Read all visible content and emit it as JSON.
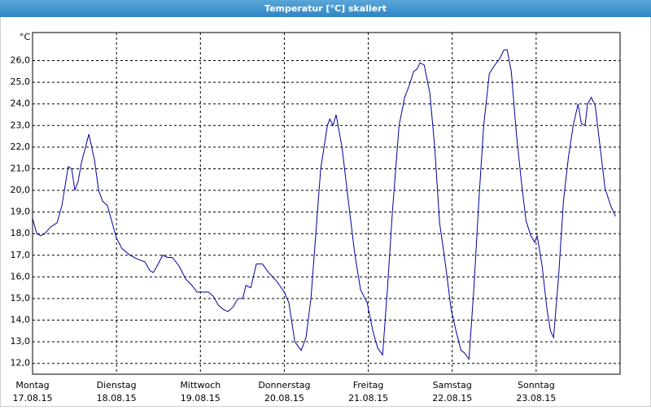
{
  "chart_data": {
    "type": "line",
    "title": "Temperatur [°C] skaliert",
    "y_unit": "°C",
    "x": [
      0,
      1.2,
      2.3,
      3.5,
      5.1,
      7.0,
      8.4,
      10.2,
      11.2,
      12.1,
      13.0,
      14.0,
      16.1,
      17.7,
      18.9,
      20.0,
      21.4,
      22.6,
      24.0,
      25.6,
      27.9,
      30.3,
      32.1,
      33.5,
      34.5,
      35.6,
      37.2,
      38.6,
      40.0,
      41.9,
      43.8,
      45.6,
      47.0,
      48.0,
      50.3,
      51.7,
      53.1,
      54.5,
      55.9,
      57.3,
      58.7,
      60.1,
      61.0,
      62.4,
      64.0,
      65.7,
      67.5,
      69.8,
      72.0,
      73.3,
      75.0,
      76.8,
      78.2,
      79.6,
      81.0,
      82.4,
      84.3,
      85.0,
      85.9,
      86.8,
      88.5,
      90.3,
      92.2,
      93.8,
      95.7,
      97.3,
      98.7,
      100.1,
      101.5,
      102.9,
      104.8,
      106.4,
      107.6,
      109.0,
      109.9,
      110.8,
      112.0,
      113.6,
      115.0,
      116.4,
      117.8,
      119.7,
      121.1,
      122.5,
      123.4,
      124.8,
      126.2,
      127.6,
      129.0,
      130.6,
      132.2,
      133.6,
      134.8,
      135.7,
      136.9,
      138.3,
      139.7,
      141.1,
      142.5,
      143.6,
      144.3,
      145.7,
      147.1,
      148.1,
      149.0,
      150.4,
      151.8,
      153.2,
      154.6,
      156.0,
      156.9,
      158.0,
      158.7,
      159.8,
      160.9,
      162.3,
      163.7,
      165.3,
      166.7
    ],
    "series": [
      {
        "name": "Temperatur",
        "color": "#0000a0",
        "values": [
          18.7,
          18.0,
          17.9,
          18.0,
          18.3,
          18.5,
          19.3,
          21.1,
          21.0,
          20.0,
          20.4,
          21.3,
          22.6,
          21.4,
          20.0,
          19.5,
          19.3,
          18.6,
          17.8,
          17.3,
          17.0,
          16.8,
          16.7,
          16.3,
          16.2,
          16.5,
          17.0,
          16.9,
          16.9,
          16.5,
          15.9,
          15.6,
          15.3,
          15.3,
          15.3,
          15.1,
          14.7,
          14.5,
          14.4,
          14.6,
          15.0,
          15.0,
          15.6,
          15.5,
          16.6,
          16.6,
          16.2,
          15.8,
          15.3,
          14.8,
          13.0,
          12.6,
          13.2,
          15.0,
          18.0,
          21.0,
          23.0,
          23.3,
          23.0,
          23.5,
          22.0,
          19.5,
          17.0,
          15.4,
          14.8,
          13.5,
          12.7,
          12.4,
          15.5,
          19.0,
          23.0,
          24.3,
          24.8,
          25.5,
          25.6,
          25.9,
          25.8,
          24.5,
          22.0,
          18.5,
          16.9,
          14.5,
          13.5,
          12.6,
          12.5,
          12.2,
          15.5,
          19.5,
          23.0,
          25.4,
          25.8,
          26.1,
          26.5,
          26.5,
          25.5,
          22.7,
          20.5,
          18.6,
          17.9,
          17.6,
          17.9,
          16.5,
          14.5,
          13.5,
          13.2,
          16.0,
          19.5,
          21.5,
          23.0,
          24.0,
          23.1,
          23.0,
          24.0,
          24.3,
          23.9,
          22.0,
          20.1,
          19.3,
          18.8
        ]
      }
    ],
    "xlim": [
      0,
      168
    ],
    "xticks": [
      {
        "value": 0,
        "label": "Montag",
        "date": "17.08.15"
      },
      {
        "value": 24,
        "label": "Dienstag",
        "date": "18.08.15"
      },
      {
        "value": 48,
        "label": "Mittwoch",
        "date": "19.08.15"
      },
      {
        "value": 72,
        "label": "Donnerstag",
        "date": "20.08.15"
      },
      {
        "value": 96,
        "label": "Freitag",
        "date": "21.08.15"
      },
      {
        "value": 120,
        "label": "Samstag",
        "date": "22.08.15"
      },
      {
        "value": 144,
        "label": "Sonntag",
        "date": "23.08.15"
      }
    ],
    "ylim": [
      11.5,
      27.3
    ],
    "yticks": [
      {
        "value": 12,
        "label": "12,0"
      },
      {
        "value": 13,
        "label": "13,0"
      },
      {
        "value": 14,
        "label": "14,0"
      },
      {
        "value": 15,
        "label": "15,0"
      },
      {
        "value": 16,
        "label": "16,0"
      },
      {
        "value": 17,
        "label": "17,0"
      },
      {
        "value": 18,
        "label": "18,0"
      },
      {
        "value": 19,
        "label": "19,0"
      },
      {
        "value": 20,
        "label": "20,0"
      },
      {
        "value": 21,
        "label": "21,0"
      },
      {
        "value": 22,
        "label": "22,0"
      },
      {
        "value": 23,
        "label": "23,0"
      },
      {
        "value": 24,
        "label": "24,0"
      },
      {
        "value": 25,
        "label": "25,0"
      },
      {
        "value": 26,
        "label": "26,0"
      }
    ],
    "grid": true
  }
}
